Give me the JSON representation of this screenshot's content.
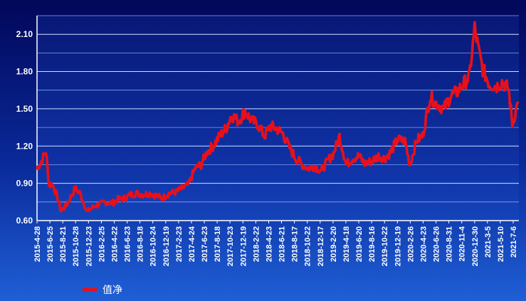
{
  "chart_data": {
    "type": "line",
    "title": "",
    "xlabel": "",
    "ylabel": "",
    "ylim": [
      0.6,
      2.25
    ],
    "y_ticks": [
      "2.10",
      "1.80",
      "1.50",
      "1.20",
      "0.90",
      "0.60"
    ],
    "y_tick_values": [
      2.1,
      1.8,
      1.5,
      1.2,
      0.9,
      0.6
    ],
    "x_ticks": [
      "2015-4-28",
      "2015-6-25",
      "2015-8-21",
      "2015-10-28",
      "2015-12-23",
      "2016-2-25",
      "2016-4-22",
      "2016-6-23",
      "2016-8-18",
      "2016-10-24",
      "2016-12-19",
      "2017-2-23",
      "2017-4-24",
      "2017-6-23",
      "2017-8-18",
      "2017-10-23",
      "2017-12-19",
      "2018-2-22",
      "2018-4-23",
      "2018-6-21",
      "2018-8-17",
      "2018-10-22",
      "2018-12-17",
      "2019-2-20",
      "2019-4-18",
      "2019-6-20",
      "2019-8-16",
      "2019-10-22",
      "2019-12-19",
      "2020-2-26",
      "2020-4-23",
      "2020-6-26",
      "2020-8-31",
      "2020-11-4",
      "2020-12-30",
      "2021-3-5",
      "2021-5-10",
      "2021-7-6"
    ],
    "grid": true,
    "legend_position": "bottom-left",
    "series": [
      {
        "name": "值净",
        "color": "#e8101a",
        "x": [
          "2015-4-28",
          "2015-5-20",
          "2015-6-10",
          "2015-6-25",
          "2015-7-8",
          "2015-7-20",
          "2015-8-5",
          "2015-8-21",
          "2015-9-15",
          "2015-10-10",
          "2015-10-28",
          "2015-11-20",
          "2015-12-10",
          "2015-12-23",
          "2016-1-15",
          "2016-2-1",
          "2016-2-25",
          "2016-3-20",
          "2016-4-22",
          "2016-5-20",
          "2016-6-23",
          "2016-7-20",
          "2016-8-18",
          "2016-9-20",
          "2016-10-24",
          "2016-11-20",
          "2016-12-19",
          "2017-1-20",
          "2017-2-23",
          "2017-3-25",
          "2017-4-24",
          "2017-5-25",
          "2017-6-23",
          "2017-7-20",
          "2017-8-18",
          "2017-9-20",
          "2017-10-23",
          "2017-11-15",
          "2017-12-19",
          "2018-1-20",
          "2018-2-22",
          "2018-3-20",
          "2018-4-23",
          "2018-5-20",
          "2018-6-21",
          "2018-7-20",
          "2018-8-17",
          "2018-9-20",
          "2018-10-22",
          "2018-11-20",
          "2018-12-17",
          "2019-1-20",
          "2019-2-20",
          "2019-3-20",
          "2019-4-18",
          "2019-5-20",
          "2019-6-20",
          "2019-7-20",
          "2019-8-16",
          "2019-9-20",
          "2019-10-22",
          "2019-11-20",
          "2019-12-19",
          "2020-1-20",
          "2020-2-26",
          "2020-3-20",
          "2020-4-23",
          "2020-5-20",
          "2020-6-26",
          "2020-7-20",
          "2020-8-31",
          "2020-10-1",
          "2020-11-4",
          "2020-12-1",
          "2020-12-30",
          "2021-1-25",
          "2021-2-15",
          "2021-3-5",
          "2021-4-5",
          "2021-5-10",
          "2021-6-5",
          "2021-7-6",
          "2021-7-25",
          "2021-8-20"
        ],
        "y": [
          1.02,
          1.08,
          1.16,
          0.88,
          0.9,
          0.86,
          0.78,
          0.68,
          0.72,
          0.8,
          0.86,
          0.82,
          0.74,
          0.67,
          0.7,
          0.72,
          0.73,
          0.75,
          0.74,
          0.77,
          0.78,
          0.81,
          0.82,
          0.81,
          0.82,
          0.8,
          0.78,
          0.82,
          0.83,
          0.86,
          0.89,
          1.02,
          1.05,
          1.15,
          1.2,
          1.28,
          1.35,
          1.45,
          1.4,
          1.48,
          1.4,
          1.38,
          1.28,
          1.36,
          1.34,
          1.3,
          1.2,
          1.1,
          1.05,
          1.02,
          1.04,
          1.0,
          1.08,
          1.14,
          1.28,
          1.05,
          1.1,
          1.12,
          1.06,
          1.08,
          1.12,
          1.1,
          1.15,
          1.25,
          1.24,
          1.05,
          1.25,
          1.28,
          1.6,
          1.55,
          1.5,
          1.6,
          1.64,
          1.7,
          1.75,
          2.15,
          1.95,
          1.82,
          1.7,
          1.68,
          1.72,
          1.66,
          1.38,
          1.55
        ]
      }
    ]
  }
}
